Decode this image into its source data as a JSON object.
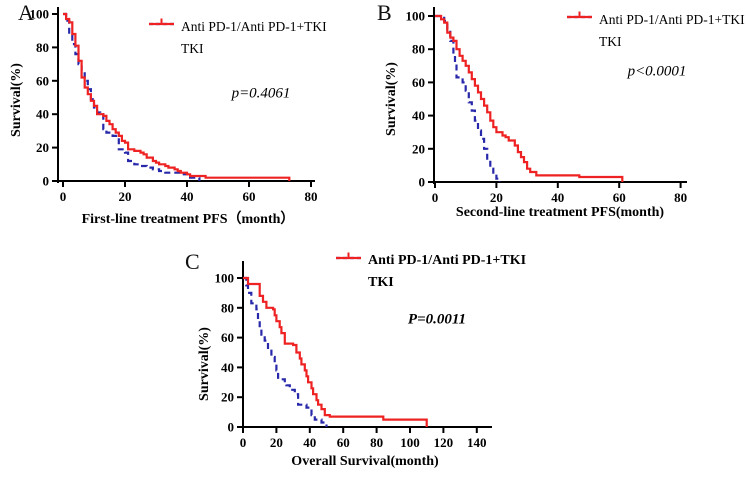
{
  "figure": {
    "background": "#ffffff"
  },
  "colors": {
    "anti_pd1_blue": "#2828aa",
    "tki_red": "#ee2222",
    "axis": "#000000"
  },
  "chart_data": [
    {
      "panel_label": "A",
      "type": "line",
      "chart_style": "kaplan-meier-step",
      "xlabel": "First-line treatment PFS（month）",
      "ylabel": "Survival(%)",
      "p_annotation": "p=0.4061",
      "xlim": [
        0,
        80
      ],
      "ylim": [
        0,
        100
      ],
      "x_ticks": [
        0,
        20,
        40,
        60,
        80
      ],
      "y_ticks": [
        0,
        20,
        40,
        60,
        80,
        100
      ],
      "grid": false,
      "legend_position": "top-right-inside",
      "series": [
        {
          "name": "Anti PD-1/Anti PD-1+TKI",
          "color": "#2828aa",
          "line_style": "dashed",
          "points": [
            [
              0,
              100
            ],
            [
              1,
              96
            ],
            [
              2,
              88
            ],
            [
              3,
              82
            ],
            [
              4,
              76
            ],
            [
              5,
              70
            ],
            [
              6,
              66
            ],
            [
              7,
              60
            ],
            [
              8,
              55
            ],
            [
              9,
              49
            ],
            [
              10,
              44
            ],
            [
              11,
              41
            ],
            [
              12,
              40
            ],
            [
              13,
              31
            ],
            [
              14,
              29
            ],
            [
              16,
              27
            ],
            [
              18,
              19
            ],
            [
              20,
              17
            ],
            [
              21,
              12
            ],
            [
              23,
              10
            ],
            [
              25,
              9
            ],
            [
              27,
              8
            ],
            [
              29,
              7
            ],
            [
              31,
              6
            ],
            [
              33,
              5
            ],
            [
              38,
              4
            ],
            [
              41,
              2
            ],
            [
              44,
              0
            ]
          ]
        },
        {
          "name": "TKI",
          "color": "#ee2222",
          "line_style": "solid",
          "points": [
            [
              0,
              100
            ],
            [
              1,
              97
            ],
            [
              2,
              95
            ],
            [
              3,
              88
            ],
            [
              4,
              81
            ],
            [
              5,
              72
            ],
            [
              6,
              62
            ],
            [
              7,
              56
            ],
            [
              8,
              52
            ],
            [
              9,
              48
            ],
            [
              10,
              45
            ],
            [
              11,
              40
            ],
            [
              13,
              39
            ],
            [
              14,
              36
            ],
            [
              15,
              34
            ],
            [
              16,
              31
            ],
            [
              17,
              29
            ],
            [
              18,
              27
            ],
            [
              19,
              24
            ],
            [
              20,
              23
            ],
            [
              21,
              19
            ],
            [
              23,
              18
            ],
            [
              25,
              17
            ],
            [
              26,
              16
            ],
            [
              27,
              14
            ],
            [
              29,
              12
            ],
            [
              30,
              11
            ],
            [
              31,
              10
            ],
            [
              33,
              9
            ],
            [
              34,
              8
            ],
            [
              36,
              7
            ],
            [
              37,
              6
            ],
            [
              38,
              5
            ],
            [
              40,
              4
            ],
            [
              41,
              3
            ],
            [
              46,
              2
            ],
            [
              73,
              0
            ]
          ]
        }
      ]
    },
    {
      "panel_label": "B",
      "type": "line",
      "chart_style": "kaplan-meier-step",
      "xlabel": "Second-line treatment PFS(month)",
      "ylabel": "Survival(%)",
      "p_annotation": "p<0.0001",
      "xlim": [
        0,
        80
      ],
      "ylim": [
        0,
        100
      ],
      "x_ticks": [
        0,
        20,
        40,
        60,
        80
      ],
      "y_ticks": [
        0,
        20,
        40,
        60,
        80,
        100
      ],
      "grid": false,
      "legend_position": "top-right-inside",
      "series": [
        {
          "name": "Anti PD-1/Anti PD-1+TKI",
          "color": "#2828aa",
          "line_style": "dashed",
          "points": [
            [
              0,
              100
            ],
            [
              3,
              97
            ],
            [
              4,
              92
            ],
            [
              5,
              85
            ],
            [
              6,
              77
            ],
            [
              6.5,
              72
            ],
            [
              7,
              63
            ],
            [
              9,
              60
            ],
            [
              10,
              55
            ],
            [
              11,
              48
            ],
            [
              12,
              43
            ],
            [
              13,
              37
            ],
            [
              14,
              31
            ],
            [
              15,
              26
            ],
            [
              16,
              20
            ],
            [
              17,
              13
            ],
            [
              18,
              8
            ],
            [
              19,
              5
            ],
            [
              20,
              2
            ],
            [
              21,
              0
            ]
          ]
        },
        {
          "name": "TKI",
          "color": "#ee2222",
          "line_style": "solid",
          "points": [
            [
              0,
              100
            ],
            [
              2,
              98
            ],
            [
              3,
              96
            ],
            [
              4,
              90
            ],
            [
              5,
              87
            ],
            [
              6,
              85
            ],
            [
              7,
              80
            ],
            [
              8,
              76
            ],
            [
              9,
              73
            ],
            [
              10,
              70
            ],
            [
              11,
              66
            ],
            [
              12,
              62
            ],
            [
              13,
              58
            ],
            [
              14,
              54
            ],
            [
              15,
              50
            ],
            [
              16,
              46
            ],
            [
              17,
              42
            ],
            [
              18,
              37
            ],
            [
              19,
              33
            ],
            [
              20,
              30
            ],
            [
              22,
              28
            ],
            [
              23,
              27
            ],
            [
              24,
              25
            ],
            [
              26,
              22
            ],
            [
              27,
              18
            ],
            [
              28,
              15
            ],
            [
              29,
              12
            ],
            [
              30,
              8
            ],
            [
              31,
              6
            ],
            [
              33,
              4
            ],
            [
              47,
              3
            ],
            [
              61,
              0
            ]
          ]
        }
      ]
    },
    {
      "panel_label": "C",
      "type": "line",
      "chart_style": "kaplan-meier-step",
      "xlabel": "Overall Survival(month)",
      "ylabel": "Survival(%)",
      "p_annotation": "P=0.0011",
      "xlim": [
        0,
        148
      ],
      "ylim": [
        0,
        100
      ],
      "x_ticks": [
        0,
        20,
        40,
        60,
        80,
        100,
        120,
        140
      ],
      "y_ticks": [
        0,
        20,
        40,
        60,
        80,
        100
      ],
      "grid": false,
      "legend_position": "top-right-inside",
      "series": [
        {
          "name": "Anti PD-1/Anti PD-1+TKI",
          "color": "#2828aa",
          "line_style": "dashed",
          "points": [
            [
              0,
              100
            ],
            [
              2,
              95
            ],
            [
              3,
              90
            ],
            [
              5,
              83
            ],
            [
              8,
              79
            ],
            [
              9,
              71
            ],
            [
              10,
              66
            ],
            [
              11,
              62
            ],
            [
              13,
              58
            ],
            [
              15,
              52
            ],
            [
              17,
              47
            ],
            [
              19,
              42
            ],
            [
              20,
              38
            ],
            [
              21,
              32
            ],
            [
              25,
              30
            ],
            [
              26,
              28
            ],
            [
              28,
              25
            ],
            [
              31,
              22
            ],
            [
              33,
              15
            ],
            [
              38,
              13
            ],
            [
              40,
              12
            ],
            [
              41,
              8
            ],
            [
              43,
              5
            ],
            [
              47,
              3
            ],
            [
              50,
              0
            ]
          ]
        },
        {
          "name": "TKI",
          "color": "#ee2222",
          "line_style": "solid",
          "points": [
            [
              0,
              100
            ],
            [
              3,
              96
            ],
            [
              10,
              88
            ],
            [
              12,
              84
            ],
            [
              14,
              80
            ],
            [
              18,
              79
            ],
            [
              19,
              75
            ],
            [
              20,
              71
            ],
            [
              22,
              67
            ],
            [
              23,
              63
            ],
            [
              25,
              56
            ],
            [
              30,
              55
            ],
            [
              32,
              50
            ],
            [
              34,
              46
            ],
            [
              35,
              42
            ],
            [
              37,
              38
            ],
            [
              38,
              34
            ],
            [
              39,
              30
            ],
            [
              41,
              26
            ],
            [
              42,
              22
            ],
            [
              44,
              18
            ],
            [
              45,
              15
            ],
            [
              47,
              12
            ],
            [
              49,
              8
            ],
            [
              52,
              7
            ],
            [
              84,
              5
            ],
            [
              110,
              0
            ]
          ]
        }
      ]
    }
  ]
}
